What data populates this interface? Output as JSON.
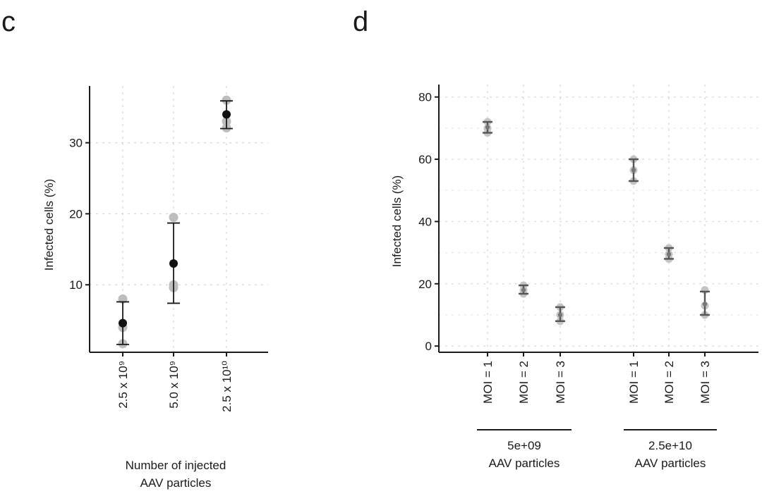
{
  "panels": {
    "c": {
      "letter": "c"
    },
    "d": {
      "letter": "d"
    }
  },
  "chart_data": [
    {
      "type": "scatter",
      "panel": "c",
      "title": "",
      "ylabel": "Infected cells (%)",
      "xlabel_lines": [
        "Number of injected",
        "AAV particles"
      ],
      "categories": [
        "2.5 x 10⁹",
        "5.0 x 10⁹",
        "2.5 x 10¹⁰"
      ],
      "ylim": [
        0.5,
        38
      ],
      "yticks": [
        10,
        20,
        30
      ],
      "grid": true,
      "points": [
        {
          "category": "2.5 x 10⁹",
          "mean": 4.6,
          "err_low": 1.6,
          "err_high": 7.6,
          "replicates": [
            8.0,
            4.0,
            1.7
          ]
        },
        {
          "category": "5.0 x 10⁹",
          "mean": 13.0,
          "err_low": 7.4,
          "err_high": 18.7,
          "replicates": [
            19.5,
            10.0,
            9.6
          ]
        },
        {
          "category": "2.5 x 10¹⁰",
          "mean": 34.0,
          "err_low": 32.0,
          "err_high": 35.9,
          "replicates": [
            36.0,
            33.0,
            32.1
          ]
        }
      ]
    },
    {
      "type": "scatter",
      "panel": "d",
      "title": "",
      "ylabel": "Infected cells (%)",
      "categories": [
        "MOI = 1",
        "MOI = 2",
        "MOI = 3",
        "MOI = 1",
        "MOI = 2",
        "MOI = 3"
      ],
      "groups": [
        {
          "lines": [
            "5e+09",
            "AAV particles"
          ]
        },
        {
          "lines": [
            "2.5e+10",
            "AAV particles"
          ]
        }
      ],
      "ylim": [
        -2,
        84
      ],
      "yticks": [
        0,
        20,
        40,
        60,
        80
      ],
      "grid": true,
      "points": [
        {
          "category": "MOI = 1",
          "group": 0,
          "mean": 70.3,
          "err_low": 68.5,
          "err_high": 72.0,
          "replicates": [
            72.0,
            70.0,
            68.5
          ]
        },
        {
          "category": "MOI = 2",
          "group": 0,
          "mean": 18.0,
          "err_low": 16.8,
          "err_high": 19.5,
          "replicates": [
            19.5,
            18.0,
            16.8
          ]
        },
        {
          "category": "MOI = 3",
          "group": 0,
          "mean": 10.0,
          "err_low": 8.0,
          "err_high": 12.5,
          "replicates": [
            12.5,
            10.0,
            8.0
          ]
        },
        {
          "category": "MOI = 1",
          "group": 1,
          "mean": 56.5,
          "err_low": 53.0,
          "err_high": 60.0,
          "replicates": [
            60.0,
            56.5,
            53.0
          ]
        },
        {
          "category": "MOI = 2",
          "group": 1,
          "mean": 29.5,
          "err_low": 28.0,
          "err_high": 31.5,
          "replicates": [
            31.5,
            29.5,
            28.0
          ]
        },
        {
          "category": "MOI = 3",
          "group": 1,
          "mean": 13.5,
          "err_low": 10.0,
          "err_high": 17.5,
          "replicates": [
            18.0,
            13.0,
            10.0
          ]
        }
      ]
    }
  ]
}
